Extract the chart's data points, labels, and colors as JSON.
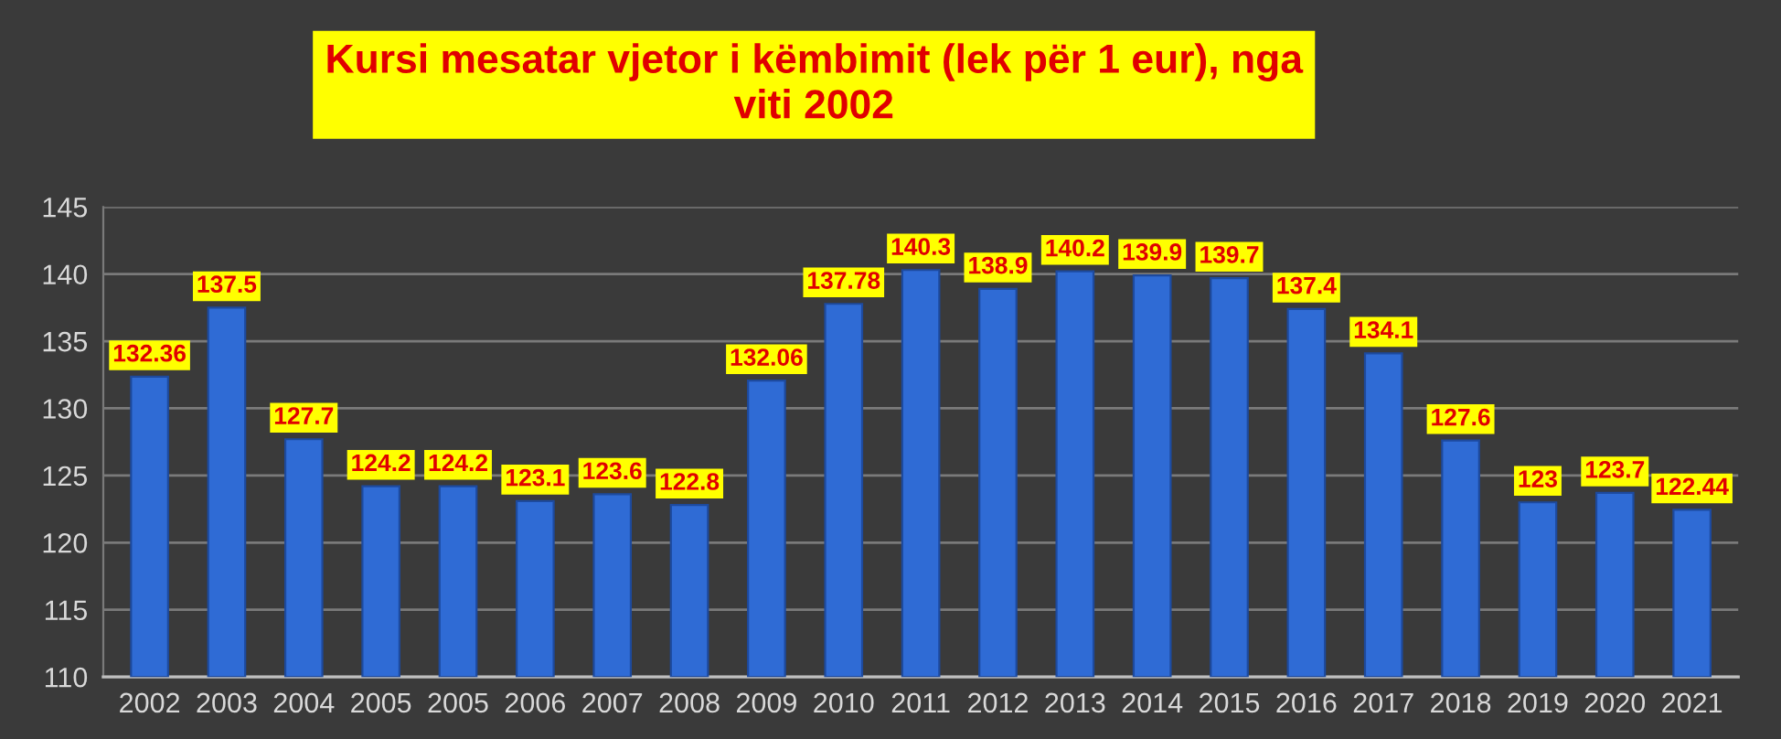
{
  "chart_data": {
    "type": "bar",
    "title": "Kursi mesatar vjetor i këmbimit (lek për 1 eur), nga\nviti 2002",
    "categories": [
      "2002",
      "2003",
      "2004",
      "2005",
      "2005",
      "2006",
      "2007",
      "2008",
      "2009",
      "2010",
      "2011",
      "2012",
      "2013",
      "2014",
      "2015",
      "2016",
      "2017",
      "2018",
      "2019",
      "2020",
      "2021"
    ],
    "values": [
      132.36,
      137.5,
      127.7,
      124.2,
      124.2,
      123.1,
      123.6,
      122.8,
      132.06,
      137.78,
      140.3,
      138.9,
      140.2,
      139.9,
      139.7,
      137.4,
      134.1,
      127.6,
      123,
      123.7,
      122.44
    ],
    "color": "#2f6bd5",
    "ylim": [
      110,
      145
    ],
    "yticks": [
      110,
      115,
      120,
      125,
      130,
      135,
      140,
      145
    ],
    "grid": "y",
    "data_labels": true
  }
}
